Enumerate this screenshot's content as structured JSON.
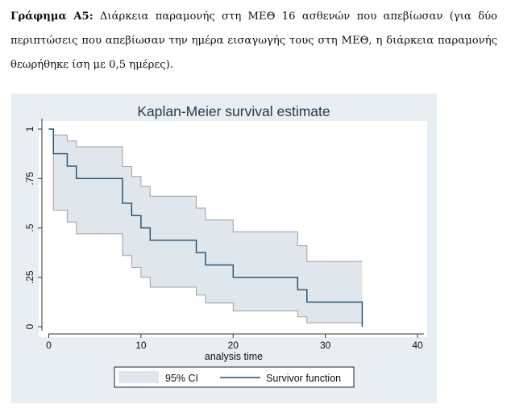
{
  "caption": {
    "label": "Γράφημα Α5:",
    "text": "Διάρκεια παραμονής στη ΜΕΘ 16 ασθενών που απεβίωσαν (για δύο περιπτώσεις που απεβίωσαν την ημέρα εισαγωγής τους στη ΜΕΘ, η διάρκεια παραμονής θεωρήθηκε ίση με 0,5 ημέρες)."
  },
  "colors": {
    "panel_bg": "#e8eef2",
    "plot_bg": "#ffffff",
    "ci_fill": "#dfe6ec",
    "ci_stroke": "#9aa0a6",
    "survivor_line": "#1f4e6e",
    "title": "#1f3a4d"
  },
  "chart_data": {
    "type": "line",
    "title": "Kaplan-Meier survival estimate",
    "xlabel": "analysis time",
    "ylabel": "",
    "xlim": [
      0,
      40
    ],
    "ylim": [
      0,
      1
    ],
    "x_ticks": [
      0,
      10,
      20,
      30,
      40
    ],
    "x_tick_labels": [
      "0",
      "10",
      "20",
      "30",
      "40"
    ],
    "y_ticks": [
      0,
      0.25,
      0.5,
      0.75,
      1
    ],
    "y_tick_labels": [
      "0",
      ".25",
      ".5",
      ".75",
      "1"
    ],
    "grid": false,
    "legend_position": "bottom",
    "series": [
      {
        "name": "Survivor function",
        "style": "step",
        "x": [
          0,
          0.5,
          2,
          3,
          8,
          9,
          10,
          11,
          16,
          17,
          20,
          27,
          28,
          34
        ],
        "y": [
          1,
          0.875,
          0.8125,
          0.75,
          0.625,
          0.5625,
          0.5,
          0.4375,
          0.375,
          0.3125,
          0.25,
          0.1875,
          0.125,
          0
        ]
      },
      {
        "name": "95% CI",
        "style": "band",
        "x": [
          0,
          0.5,
          2,
          3,
          8,
          9,
          10,
          11,
          16,
          17,
          20,
          27,
          28,
          34
        ],
        "lower": [
          1,
          0.59,
          0.53,
          0.47,
          0.36,
          0.3,
          0.25,
          0.2,
          0.16,
          0.12,
          0.08,
          0.05,
          0.02,
          0.02
        ],
        "upper": [
          1,
          0.97,
          0.94,
          0.91,
          0.81,
          0.76,
          0.71,
          0.66,
          0.6,
          0.54,
          0.48,
          0.41,
          0.33,
          0.33
        ]
      }
    ]
  }
}
